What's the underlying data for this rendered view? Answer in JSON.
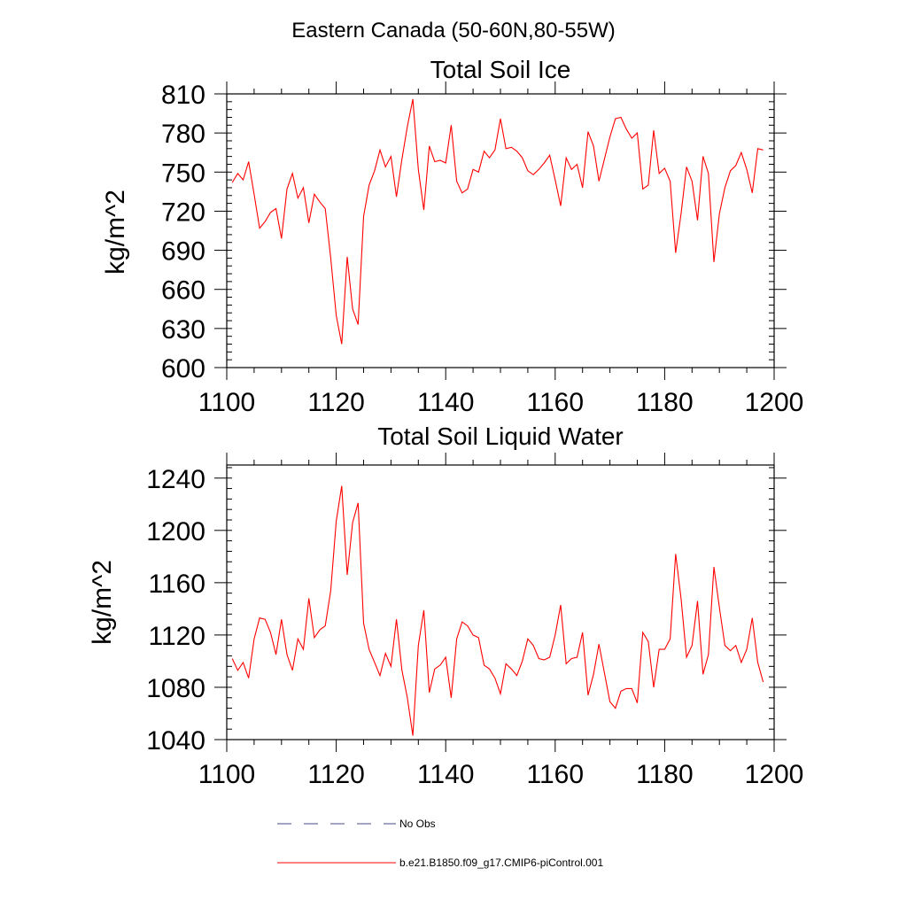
{
  "figure": {
    "title": "Eastern Canada (50-60N,80-55W)"
  },
  "chart_data": [
    {
      "type": "line",
      "title": "Total Soil Ice",
      "xlabel": "",
      "ylabel": "kg/m^2",
      "xlim": [
        1100,
        1200
      ],
      "ylim": [
        600,
        810
      ],
      "xticks": [
        1100,
        1120,
        1140,
        1160,
        1180,
        1200
      ],
      "yticks": [
        600,
        630,
        660,
        690,
        720,
        750,
        780,
        810
      ],
      "x_start": 1101,
      "series": [
        {
          "color": "#ff0000",
          "values": [
            742,
            749,
            744,
            758,
            733,
            707,
            712,
            719,
            722,
            699,
            737,
            749,
            730,
            738,
            711,
            733,
            727,
            722,
            684,
            640,
            618,
            685,
            645,
            633,
            716,
            740,
            751,
            767,
            754,
            762,
            731,
            760,
            785,
            806,
            752,
            721,
            770,
            758,
            759,
            757,
            786,
            743,
            734,
            737,
            752,
            750,
            766,
            761,
            767,
            791,
            768,
            769,
            766,
            761,
            751,
            748,
            752,
            757,
            763,
            744,
            724,
            761,
            752,
            756,
            738,
            781,
            770,
            743,
            760,
            777,
            791,
            792,
            783,
            776,
            780,
            737,
            740,
            782,
            749,
            753,
            743,
            688,
            718,
            754,
            743,
            713,
            762,
            749,
            681,
            718,
            738,
            751,
            755,
            765,
            752,
            734,
            768,
            767
          ]
        }
      ]
    },
    {
      "type": "line",
      "title": "Total Soil Liquid Water",
      "xlabel": "",
      "ylabel": "kg/m^2",
      "xlim": [
        1100,
        1200
      ],
      "ylim": [
        1040,
        1250
      ],
      "xticks": [
        1100,
        1120,
        1140,
        1160,
        1180,
        1200
      ],
      "yticks": [
        1040,
        1080,
        1120,
        1160,
        1200,
        1240
      ],
      "x_start": 1101,
      "series": [
        {
          "color": "#ff0000",
          "values": [
            1102,
            1093,
            1099,
            1087,
            1117,
            1133,
            1132,
            1122,
            1105,
            1132,
            1105,
            1093,
            1117,
            1109,
            1148,
            1118,
            1124,
            1127,
            1154,
            1207,
            1234,
            1166,
            1206,
            1221,
            1129,
            1109,
            1099,
            1089,
            1106,
            1096,
            1132,
            1093,
            1072,
            1043,
            1112,
            1139,
            1076,
            1094,
            1097,
            1103,
            1072,
            1117,
            1130,
            1127,
            1120,
            1118,
            1097,
            1094,
            1087,
            1075,
            1098,
            1094,
            1089,
            1100,
            1117,
            1112,
            1102,
            1101,
            1103,
            1120,
            1143,
            1098,
            1102,
            1103,
            1122,
            1074,
            1090,
            1113,
            1091,
            1069,
            1064,
            1077,
            1079,
            1079,
            1068,
            1122,
            1115,
            1080,
            1109,
            1109,
            1117,
            1182,
            1148,
            1103,
            1112,
            1146,
            1090,
            1105,
            1172,
            1141,
            1112,
            1108,
            1112,
            1099,
            1109,
            1133,
            1099,
            1084
          ]
        }
      ]
    }
  ],
  "legend": {
    "items": [
      {
        "label": "No Obs",
        "color": "#4a4a8a",
        "style": "dashed"
      },
      {
        "label": "b.e21.B1850.f09_g17.CMIP6-piControl.001",
        "color": "#ff0000",
        "style": "solid"
      }
    ]
  }
}
